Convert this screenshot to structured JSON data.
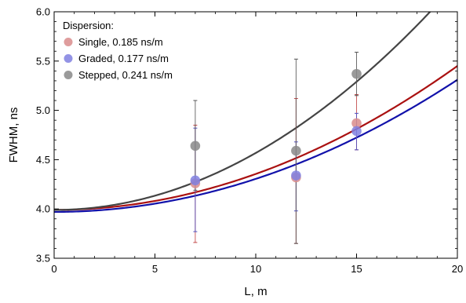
{
  "chart_data": {
    "type": "scatter",
    "xlabel": "L, m",
    "ylabel": "FWHM, ns",
    "xlim": [
      0,
      20
    ],
    "ylim": [
      3.5,
      6.0
    ],
    "x_ticks": [
      "0",
      "5",
      "10",
      "15",
      "20"
    ],
    "y_ticks": [
      "3.5",
      "4.0",
      "4.5",
      "5.0",
      "5.5",
      "6.0"
    ],
    "grid": false,
    "legend_title": "Dispersion:",
    "legend_position": "top-left",
    "series": [
      {
        "name": "Single, 0.185 ns/m",
        "marker_color": "#d98c8c",
        "error_color": "#c24646",
        "curve_color": "#aa1111",
        "fit": {
          "a": 3.99,
          "b": 0.00365
        },
        "points": [
          {
            "x": 7,
            "y": 4.26,
            "err_low": 3.66,
            "err_high": 4.85
          },
          {
            "x": 12,
            "y": 4.32,
            "err_low": 3.65,
            "err_high": 5.12
          },
          {
            "x": 15,
            "y": 4.87,
            "err_low": 4.6,
            "err_high": 5.16
          }
        ]
      },
      {
        "name": "Graded, 0.177 ns/m",
        "marker_color": "#8080e0",
        "error_color": "#5050c0",
        "curve_color": "#1111aa",
        "fit": {
          "a": 3.97,
          "b": 0.00335
        },
        "points": [
          {
            "x": 7,
            "y": 4.29,
            "err_low": 3.77,
            "err_high": 4.82
          },
          {
            "x": 12,
            "y": 4.34,
            "err_low": 3.98,
            "err_high": 4.68
          },
          {
            "x": 15,
            "y": 4.79,
            "err_low": 4.6,
            "err_high": 4.97
          }
        ]
      },
      {
        "name": "Stepped, 0.241 ns/m",
        "marker_color": "#888888",
        "error_color": "#555555",
        "curve_color": "#444444",
        "fit": {
          "a": 3.99,
          "b": 0.00578
        },
        "points": [
          {
            "x": 7,
            "y": 4.64,
            "err_low": 4.19,
            "err_high": 5.1
          },
          {
            "x": 12,
            "y": 4.59,
            "err_low": 3.65,
            "err_high": 5.52
          },
          {
            "x": 15,
            "y": 5.37,
            "err_low": 5.15,
            "err_high": 5.59
          }
        ]
      }
    ]
  }
}
